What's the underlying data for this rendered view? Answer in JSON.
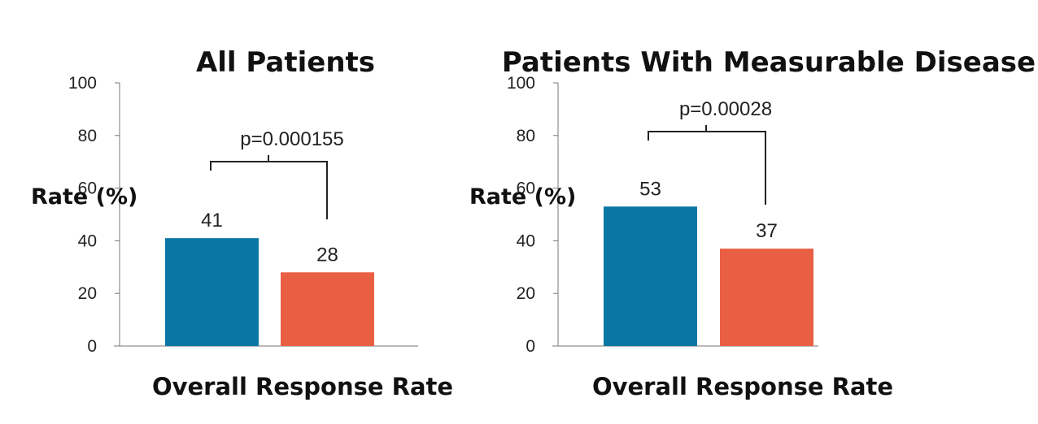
{
  "chart_data": [
    {
      "type": "bar",
      "title": "All Patients",
      "ylabel": "Rate (%)",
      "xlabel": "Overall Response Rate",
      "ylim": [
        0,
        100
      ],
      "yticks": [
        0,
        20,
        40,
        60,
        80,
        100
      ],
      "values": [
        41,
        28
      ],
      "colors": [
        "#0a76a3",
        "#e95f43"
      ],
      "annotation": "p=0.000155"
    },
    {
      "type": "bar",
      "title": "Patients With Measurable Disease",
      "ylabel": "Rate (%)",
      "xlabel": "Overall Response Rate",
      "ylim": [
        0,
        100
      ],
      "yticks": [
        0,
        20,
        40,
        60,
        80,
        100
      ],
      "values": [
        53,
        37
      ],
      "colors": [
        "#0a76a3",
        "#e95f43"
      ],
      "annotation": "p=0.00028"
    }
  ]
}
